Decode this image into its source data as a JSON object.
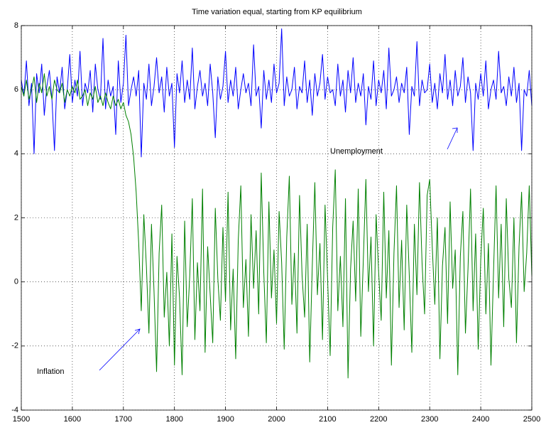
{
  "chart_data": {
    "type": "line",
    "title": "Time variation equal, starting from KP equilibrium",
    "x": [
      1500,
      1505,
      1510,
      1515,
      1520,
      1525,
      1530,
      1535,
      1540,
      1545,
      1550,
      1555,
      1560,
      1565,
      1570,
      1575,
      1580,
      1585,
      1590,
      1595,
      1600,
      1605,
      1610,
      1615,
      1620,
      1625,
      1630,
      1635,
      1640,
      1645,
      1650,
      1655,
      1660,
      1665,
      1670,
      1675,
      1680,
      1685,
      1690,
      1695,
      1700,
      1705,
      1710,
      1715,
      1720,
      1725,
      1730,
      1735,
      1740,
      1745,
      1750,
      1755,
      1760,
      1765,
      1770,
      1775,
      1780,
      1785,
      1790,
      1795,
      1800,
      1805,
      1810,
      1815,
      1820,
      1825,
      1830,
      1835,
      1840,
      1845,
      1850,
      1855,
      1860,
      1865,
      1870,
      1875,
      1880,
      1885,
      1890,
      1895,
      1900,
      1905,
      1910,
      1915,
      1920,
      1925,
      1930,
      1935,
      1940,
      1945,
      1950,
      1955,
      1960,
      1965,
      1970,
      1975,
      1980,
      1985,
      1990,
      1995,
      2000,
      2005,
      2010,
      2015,
      2020,
      2025,
      2030,
      2035,
      2040,
      2045,
      2050,
      2055,
      2060,
      2065,
      2070,
      2075,
      2080,
      2085,
      2090,
      2095,
      2100,
      2105,
      2110,
      2115,
      2120,
      2125,
      2130,
      2135,
      2140,
      2145,
      2150,
      2155,
      2160,
      2165,
      2170,
      2175,
      2180,
      2185,
      2190,
      2195,
      2200,
      2205,
      2210,
      2215,
      2220,
      2225,
      2230,
      2235,
      2240,
      2245,
      2250,
      2255,
      2260,
      2265,
      2270,
      2275,
      2280,
      2285,
      2290,
      2295,
      2300,
      2305,
      2310,
      2315,
      2320,
      2325,
      2330,
      2335,
      2340,
      2345,
      2350,
      2355,
      2360,
      2365,
      2370,
      2375,
      2380,
      2385,
      2390,
      2395,
      2400,
      2405,
      2410,
      2415,
      2420,
      2425,
      2430,
      2435,
      2440,
      2445,
      2450,
      2455,
      2460,
      2465,
      2470,
      2475,
      2480,
      2485,
      2490,
      2495,
      2500
    ],
    "series": [
      {
        "name": "Unemployment",
        "color": "#0000ff",
        "values": [
          6.3,
          5.8,
          6.9,
          5.5,
          6.2,
          4.0,
          6.5,
          5.9,
          6.8,
          5.2,
          6.1,
          6.6,
          5.7,
          4.1,
          6.4,
          5.9,
          6.7,
          5.4,
          6.0,
          7.1,
          5.6,
          6.3,
          5.8,
          7.2,
          5.5,
          6.2,
          5.9,
          6.6,
          5.3,
          6.8,
          6.0,
          5.7,
          7.6,
          5.4,
          6.3,
          5.8,
          6.1,
          4.6,
          6.9,
          5.6,
          6.2,
          7.7,
          5.5,
          6.0,
          6.4,
          5.8,
          6.6,
          3.9,
          6.2,
          5.7,
          6.8,
          5.5,
          6.1,
          7.0,
          5.9,
          6.4,
          5.3,
          6.7,
          5.8,
          6.2,
          4.2,
          6.5,
          5.9,
          6.9,
          5.6,
          6.3,
          5.7,
          7.3,
          5.4,
          6.1,
          6.6,
          5.8,
          6.2,
          5.5,
          6.8,
          5.9,
          4.5,
          6.4,
          5.7,
          6.1,
          7.2,
          5.6,
          6.3,
          5.8,
          6.7,
          5.4,
          6.0,
          6.5,
          5.9,
          6.2,
          5.5,
          7.4,
          5.8,
          6.1,
          4.8,
          6.6,
          5.7,
          6.3,
          5.6,
          6.8,
          5.9,
          6.2,
          7.9,
          5.5,
          6.4,
          5.8,
          6.0,
          6.7,
          5.4,
          6.1,
          5.9,
          6.9,
          5.6,
          6.3,
          5.2,
          6.5,
          5.8,
          6.2,
          7.1,
          5.7,
          6.4,
          5.9,
          6.0,
          5.5,
          6.8,
          5.8,
          6.3,
          5.3,
          6.6,
          5.9,
          7.0,
          5.6,
          6.2,
          5.8,
          6.5,
          4.9,
          6.1,
          5.7,
          6.9,
          5.5,
          6.3,
          5.9,
          6.6,
          5.4,
          7.3,
          5.8,
          6.0,
          6.4,
          5.6,
          6.2,
          5.9,
          6.7,
          4.6,
          6.1,
          5.8,
          7.5,
          5.5,
          6.3,
          5.9,
          6.0,
          6.8,
          5.6,
          6.2,
          5.4,
          6.5,
          5.9,
          7.1,
          5.7,
          6.3,
          5.5,
          6.6,
          5.8,
          6.1,
          7.0,
          5.6,
          6.4,
          5.9,
          4.1,
          6.2,
          5.7,
          6.5,
          5.8,
          6.9,
          5.4,
          6.0,
          6.3,
          5.7,
          7.2,
          5.9,
          6.1,
          5.5,
          6.4,
          5.8,
          6.7,
          5.6,
          6.2,
          4.1,
          6.0,
          5.8,
          6.6,
          5.5
        ]
      },
      {
        "name": "Inflation",
        "color": "#008000",
        "values": [
          6.1,
          5.8,
          6.3,
          5.7,
          6.0,
          6.4,
          5.6,
          6.2,
          5.9,
          6.5,
          5.8,
          6.1,
          5.7,
          6.3,
          6.0,
          5.9,
          6.2,
          5.6,
          6.0,
          5.8,
          6.1,
          5.9,
          6.3,
          5.7,
          5.8,
          6.0,
          5.5,
          5.9,
          5.7,
          6.1,
          5.6,
          5.8,
          5.5,
          5.9,
          5.6,
          5.4,
          5.8,
          5.5,
          5.7,
          5.4,
          5.6,
          5.2,
          5.0,
          4.6,
          3.9,
          2.8,
          1.2,
          -0.9,
          2.1,
          0.5,
          -1.6,
          1.8,
          -0.3,
          -2.8,
          0.9,
          2.4,
          -1.1,
          0.3,
          -2.0,
          1.5,
          -2.6,
          0.8,
          -0.5,
          -2.9,
          1.9,
          -1.4,
          0.2,
          2.6,
          -1.8,
          0.6,
          -0.9,
          2.9,
          -2.2,
          1.1,
          -0.4,
          -1.9,
          2.3,
          0.1,
          -1.2,
          1.7,
          -0.6,
          2.8,
          -1.5,
          0.4,
          -2.4,
          1.3,
          3.0,
          -0.8,
          0.7,
          -1.7,
          2.1,
          -0.2,
          1.6,
          -1.0,
          3.4,
          0.3,
          -1.9,
          2.5,
          -0.5,
          1.0,
          -1.3,
          2.2,
          0.6,
          -2.1,
          1.4,
          3.3,
          -0.7,
          0.9,
          -1.6,
          2.7,
          0.2,
          -1.1,
          1.8,
          -2.5,
          0.5,
          3.1,
          -0.4,
          1.2,
          -1.8,
          2.4,
          0.1,
          -2.3,
          1.7,
          3.5,
          -0.9,
          0.8,
          -1.4,
          2.6,
          -3.0,
          0.4,
          1.9,
          -0.6,
          2.9,
          -1.7,
          0.7,
          3.2,
          -0.3,
          1.4,
          -2.0,
          2.1,
          0.3,
          -1.2,
          2.8,
          -0.5,
          1.6,
          -2.6,
          0.9,
          3.0,
          -0.8,
          1.3,
          -1.5,
          2.4,
          0.2,
          -2.2,
          1.8,
          -0.4,
          3.1,
          0.6,
          -1.0,
          2.7,
          3.2,
          1.1,
          -0.7,
          2.0,
          -2.4,
          0.5,
          1.7,
          -1.3,
          2.5,
          -0.2,
          1.0,
          -2.9,
          0.8,
          2.2,
          -1.6,
          0.4,
          2.9,
          -0.9,
          1.5,
          -2.1,
          0.7,
          2.3,
          -1.0,
          1.2,
          -2.6,
          0.3,
          3.0,
          -0.5,
          1.8,
          -1.4,
          2.6,
          0.1,
          -0.8,
          2.0,
          -1.9,
          1.1,
          2.8,
          -0.3,
          0.9,
          3.0,
          0.2
        ]
      }
    ],
    "annotations": [
      "Unemployment",
      "Inflation"
    ],
    "xlim": [
      1500,
      2500
    ],
    "xticks": [
      1500,
      1600,
      1700,
      1800,
      1900,
      2000,
      2100,
      2200,
      2300,
      2400,
      2500
    ],
    "ylim": [
      -4,
      8
    ],
    "yticks": [
      -4,
      -2,
      0,
      2,
      4,
      6,
      8
    ],
    "grid": true
  }
}
